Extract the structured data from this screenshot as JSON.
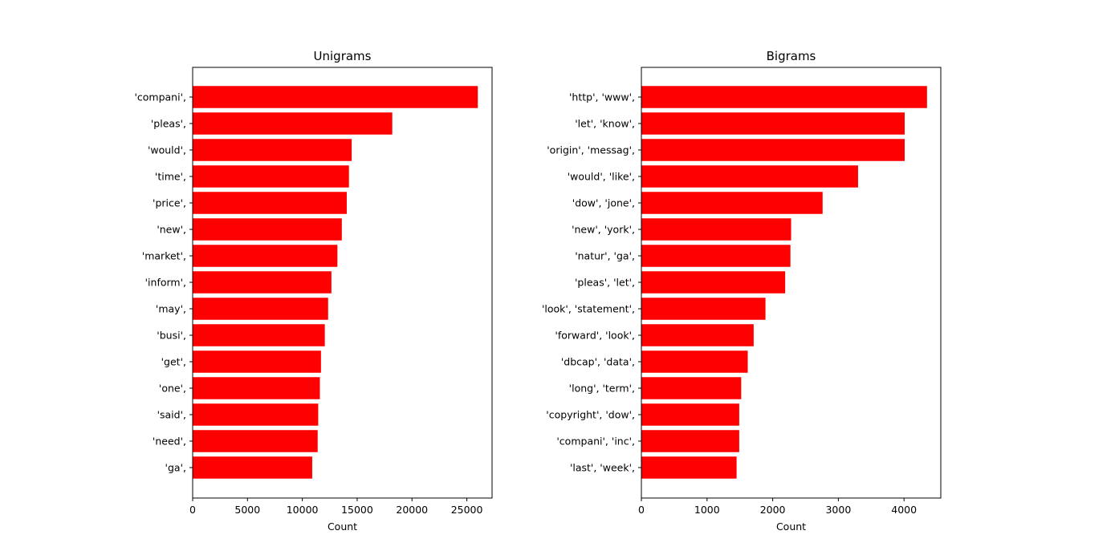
{
  "chart_data": [
    {
      "type": "bar",
      "orientation": "horizontal",
      "title": "Unigrams",
      "xlabel": "Count",
      "ylabel": "",
      "xlim": [
        0,
        27300
      ],
      "xticks": [
        0,
        5000,
        10000,
        15000,
        20000,
        25000
      ],
      "xtick_labels": [
        "0",
        "5000",
        "10000",
        "15000",
        "20000",
        "25000"
      ],
      "bar_color": "#ff0000",
      "grid": false,
      "categories": [
        "'compani',",
        "'pleas',",
        "'would',",
        "'time',",
        "'price',",
        "'new',",
        "'market',",
        "'inform',",
        "'may',",
        "'busi',",
        "'get',",
        "'one',",
        "'said',",
        "'need',",
        "'ga',"
      ],
      "values": [
        26000,
        18200,
        14500,
        14250,
        14050,
        13600,
        13200,
        12650,
        12350,
        12050,
        11700,
        11600,
        11450,
        11400,
        10900
      ]
    },
    {
      "type": "bar",
      "orientation": "horizontal",
      "title": "Bigrams",
      "xlabel": "Count",
      "ylabel": "",
      "xlim": [
        0,
        4560
      ],
      "xticks": [
        0,
        1000,
        2000,
        3000,
        4000
      ],
      "xtick_labels": [
        "0",
        "1000",
        "2000",
        "3000",
        "4000"
      ],
      "bar_color": "#ff0000",
      "grid": false,
      "categories": [
        "'http', 'www',",
        "'let', 'know',",
        "'origin', 'messag',",
        "'would', 'like',",
        "'dow', 'jone',",
        "'new', 'york',",
        "'natur', 'ga',",
        "'pleas', 'let',",
        "'look', 'statement',",
        "'forward', 'look',",
        "'dbcap', 'data',",
        "'long', 'term',",
        "'copyright', 'dow',",
        "'compani', 'inc',",
        "'last', 'week',"
      ],
      "values": [
        4350,
        4010,
        4010,
        3300,
        2760,
        2280,
        2270,
        2190,
        1890,
        1710,
        1620,
        1520,
        1490,
        1490,
        1450
      ]
    }
  ]
}
